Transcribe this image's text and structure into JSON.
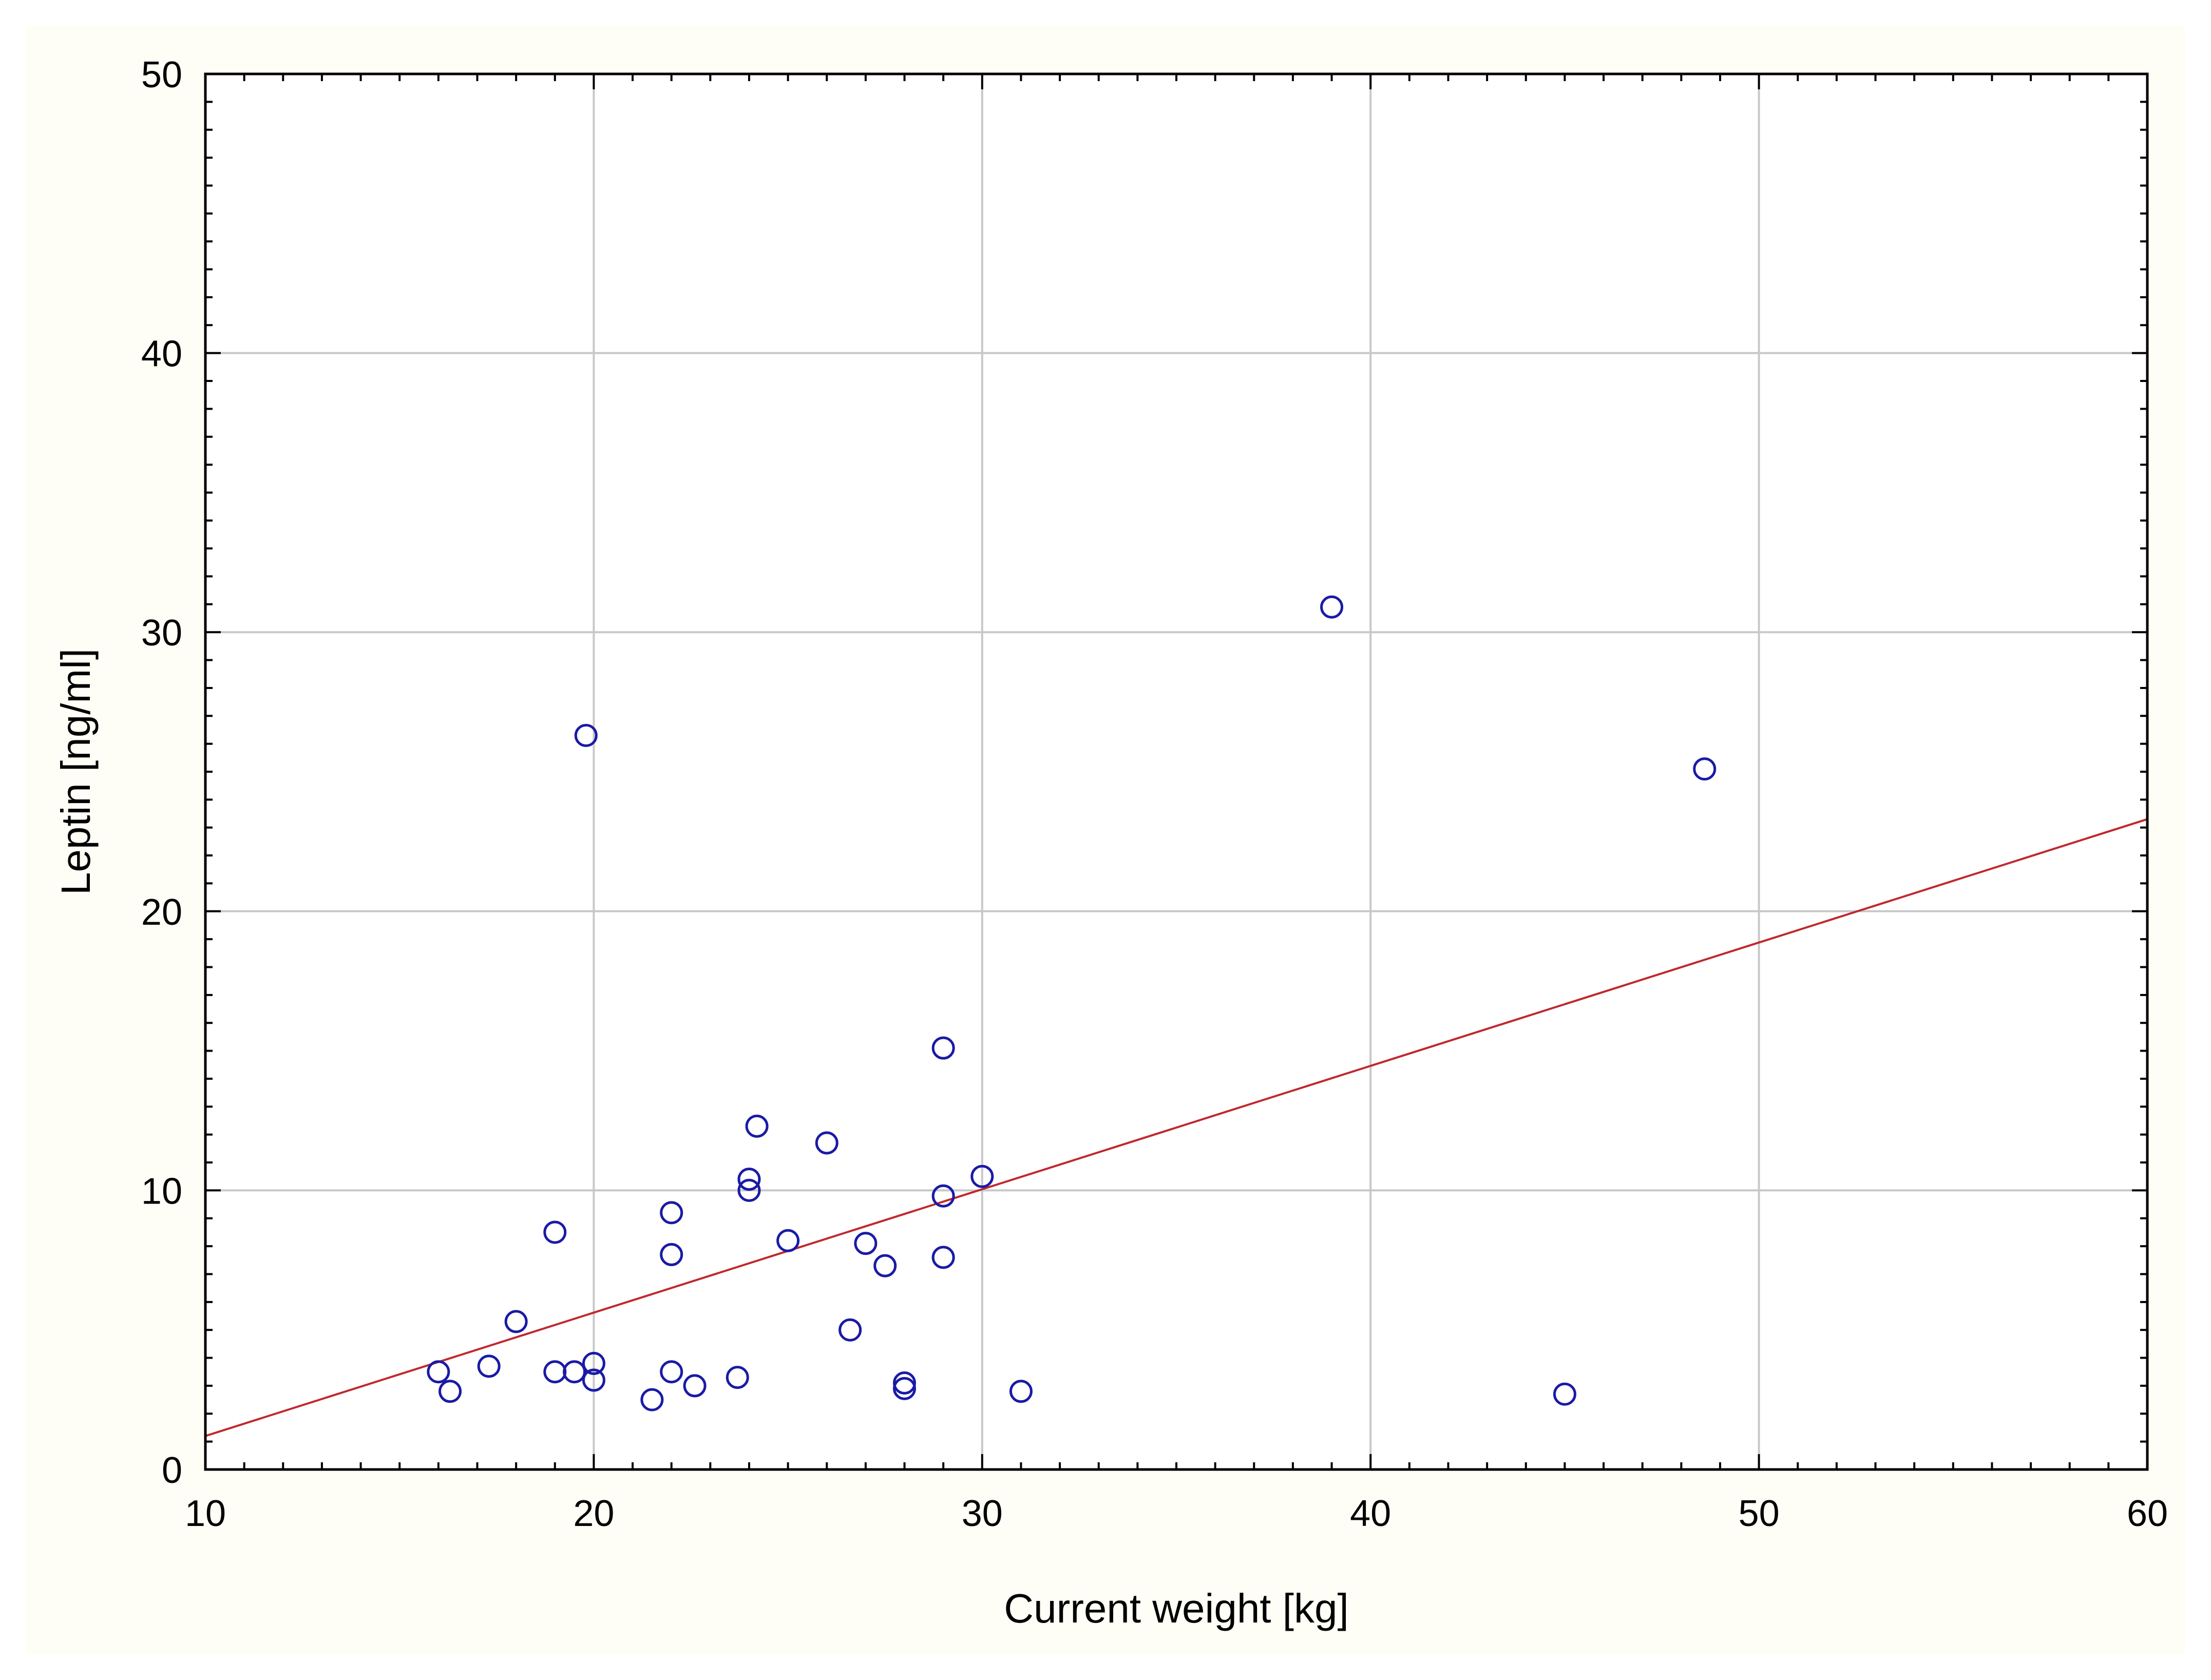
{
  "chart_data": {
    "type": "scatter",
    "title": "",
    "xlabel": "Current weight [kg]",
    "ylabel": "Leptin [ng/ml]",
    "xlim": [
      10,
      60
    ],
    "ylim": [
      0,
      50
    ],
    "xticks": [
      10,
      20,
      30,
      40,
      50,
      60
    ],
    "yticks": [
      0,
      10,
      20,
      30,
      40,
      50
    ],
    "xtick_labels": [
      "10",
      "20",
      "30",
      "40",
      "50",
      "60"
    ],
    "ytick_labels": [
      "0",
      "10",
      "20",
      "30",
      "40",
      "50"
    ],
    "grid": true,
    "marker_color": "#1a1aa6",
    "line_color": "#c0282d",
    "points": [
      {
        "x": 16.0,
        "y": 3.5
      },
      {
        "x": 16.3,
        "y": 2.8
      },
      {
        "x": 17.3,
        "y": 3.7
      },
      {
        "x": 18.0,
        "y": 5.3
      },
      {
        "x": 19.0,
        "y": 3.5
      },
      {
        "x": 19.0,
        "y": 8.5
      },
      {
        "x": 19.5,
        "y": 3.5
      },
      {
        "x": 19.8,
        "y": 26.3
      },
      {
        "x": 20.0,
        "y": 3.2
      },
      {
        "x": 20.0,
        "y": 3.8
      },
      {
        "x": 21.5,
        "y": 2.5
      },
      {
        "x": 22.0,
        "y": 3.5
      },
      {
        "x": 22.0,
        "y": 7.7
      },
      {
        "x": 22.0,
        "y": 9.2
      },
      {
        "x": 22.6,
        "y": 3.0
      },
      {
        "x": 23.7,
        "y": 3.3
      },
      {
        "x": 24.0,
        "y": 10.0
      },
      {
        "x": 24.0,
        "y": 10.4
      },
      {
        "x": 24.2,
        "y": 12.3
      },
      {
        "x": 25.0,
        "y": 8.2
      },
      {
        "x": 26.0,
        "y": 11.7
      },
      {
        "x": 26.6,
        "y": 5.0
      },
      {
        "x": 27.0,
        "y": 8.1
      },
      {
        "x": 27.5,
        "y": 7.3
      },
      {
        "x": 28.0,
        "y": 3.1
      },
      {
        "x": 28.0,
        "y": 2.9
      },
      {
        "x": 29.0,
        "y": 15.1
      },
      {
        "x": 29.0,
        "y": 9.8
      },
      {
        "x": 29.0,
        "y": 7.6
      },
      {
        "x": 30.0,
        "y": 10.5
      },
      {
        "x": 31.0,
        "y": 2.8
      },
      {
        "x": 39.0,
        "y": 30.9
      },
      {
        "x": 45.0,
        "y": 2.7
      },
      {
        "x": 48.6,
        "y": 25.1
      }
    ],
    "trend_line": {
      "x": [
        10,
        60
      ],
      "y": [
        1.2,
        23.3
      ]
    }
  }
}
